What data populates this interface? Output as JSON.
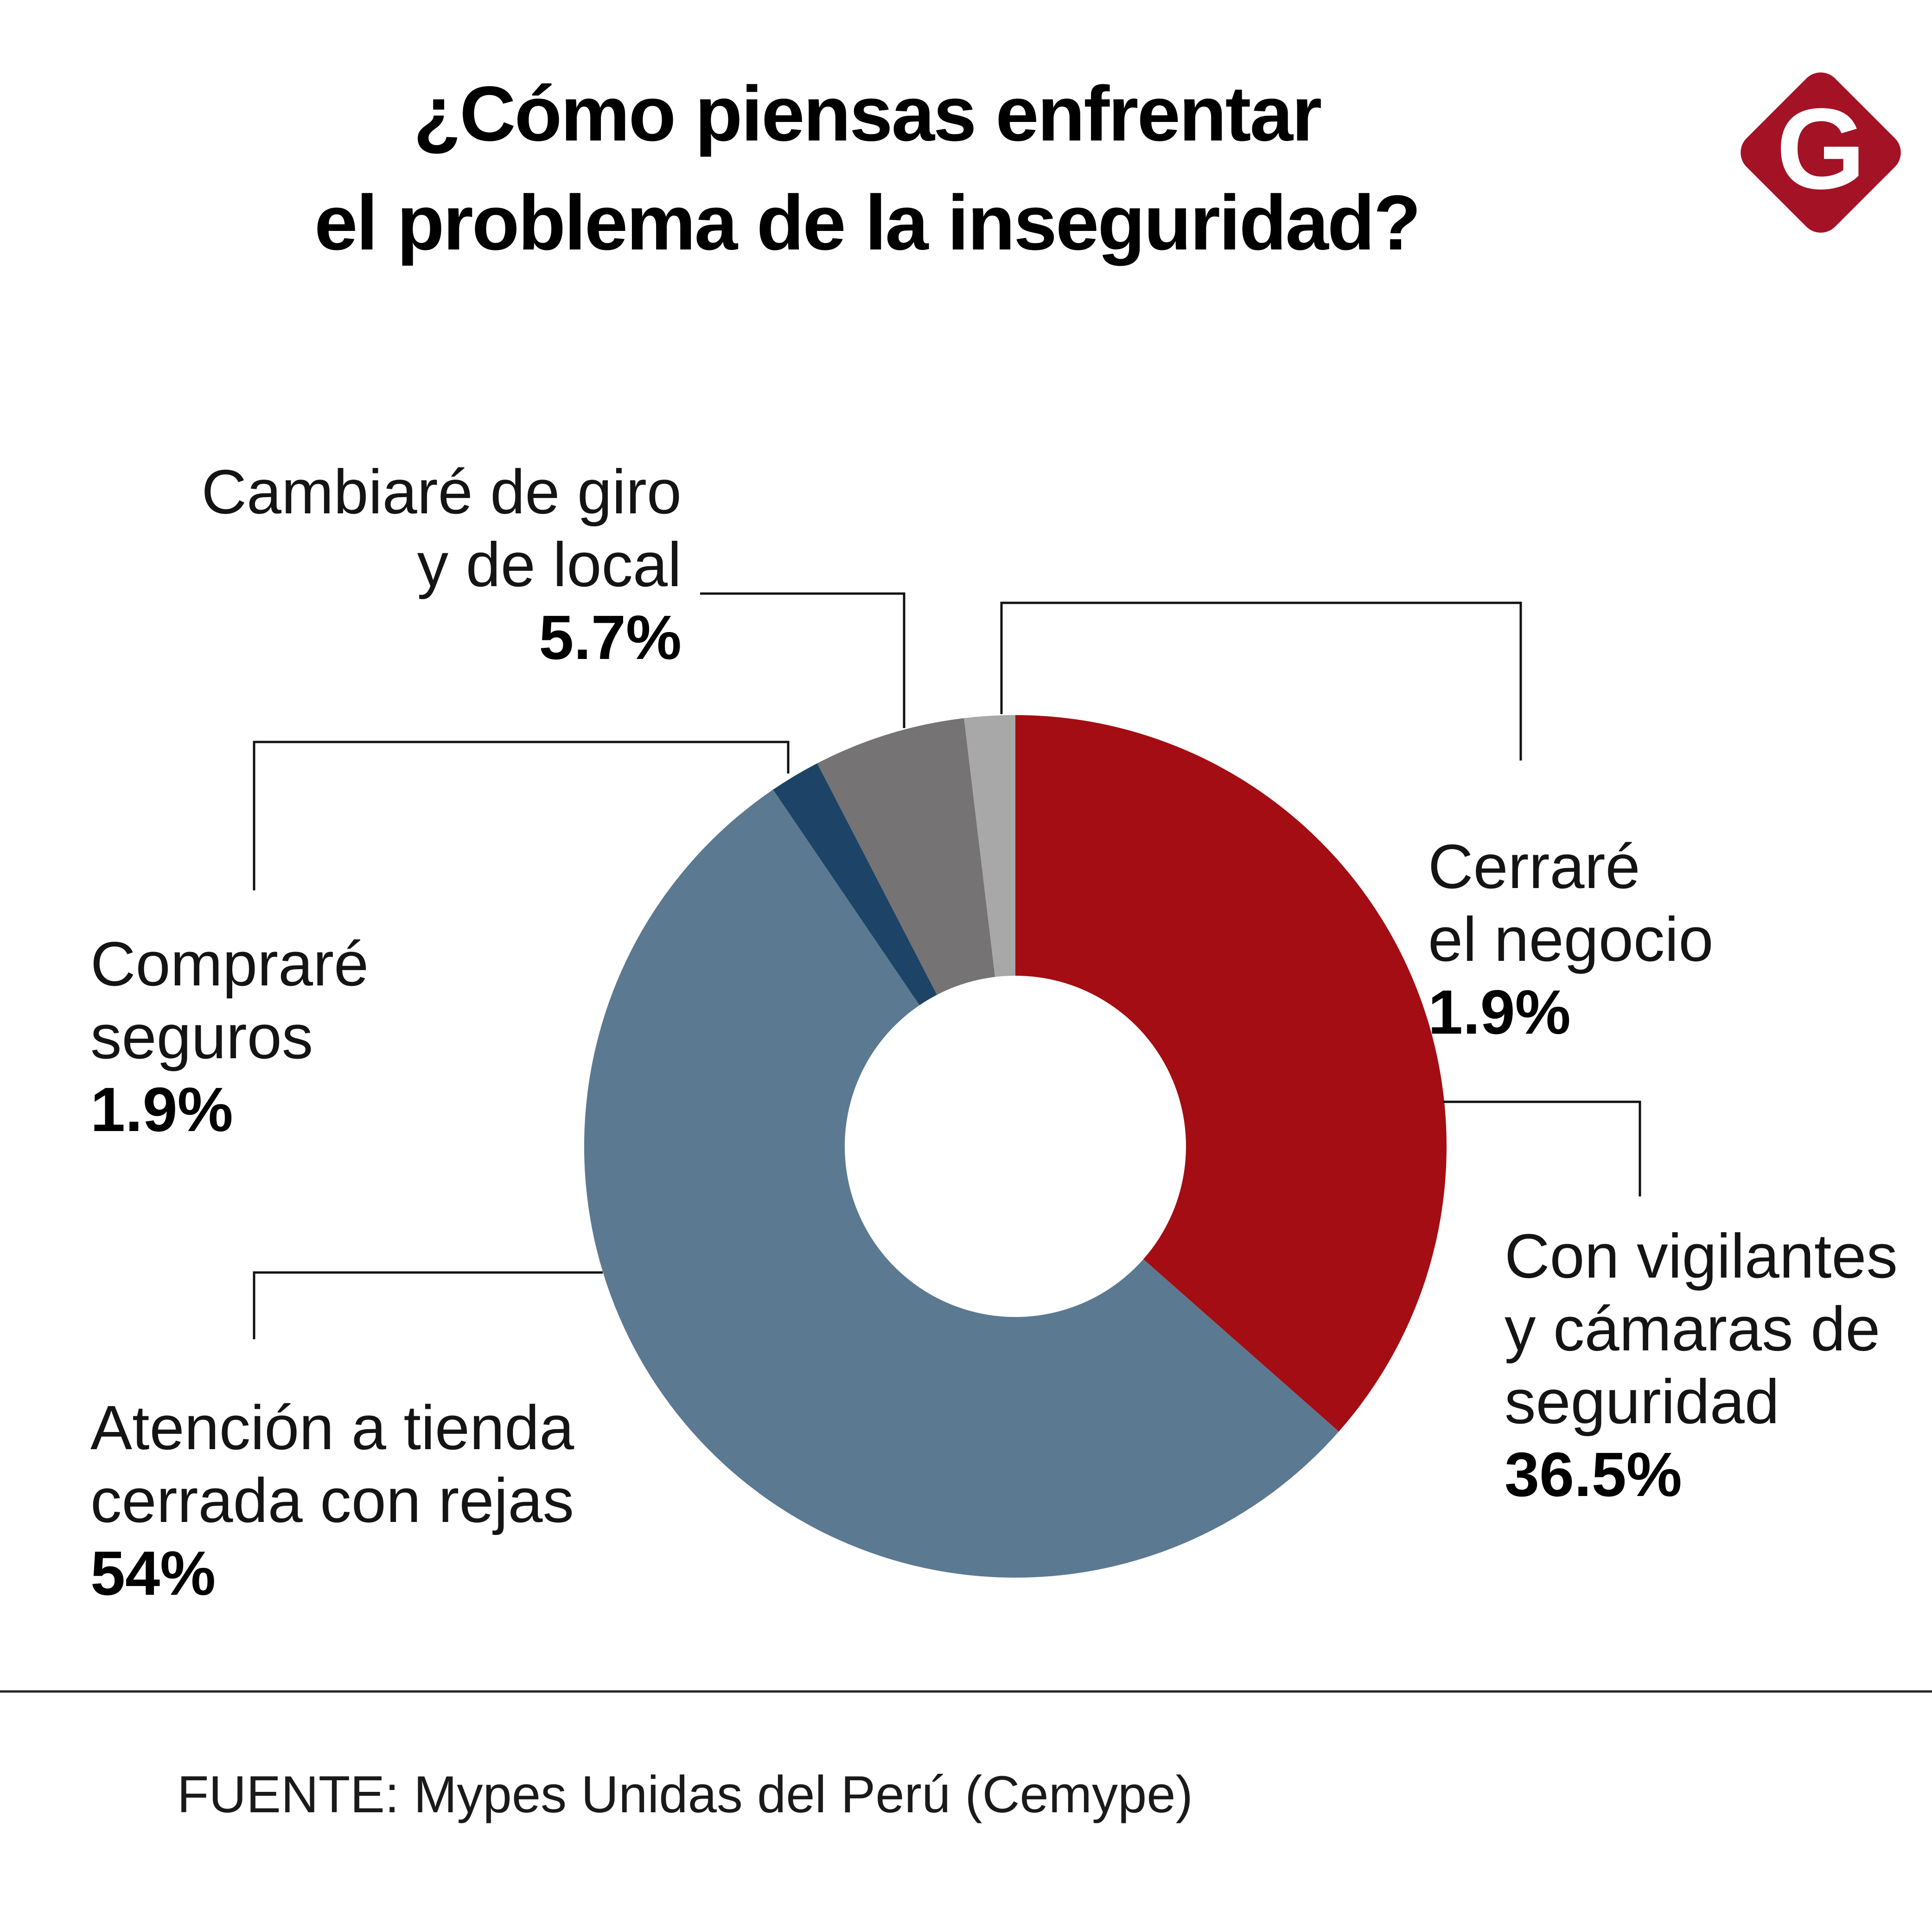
{
  "title": {
    "line1": "¿Cómo piensas enfrentar",
    "line2": "el problema de la inseguridad?"
  },
  "logo": {
    "letter": "G",
    "bg_color": "#A41225"
  },
  "callouts": {
    "cambiare": {
      "lines": [
        "Cambiaré de giro",
        "y de local"
      ],
      "pct": "5.7%"
    },
    "cerrare": {
      "lines": [
        "Cerraré",
        "el negocio"
      ],
      "pct": "1.9%"
    },
    "vigilantes": {
      "lines": [
        "Con vigilantes",
        "y cámaras de",
        "seguridad"
      ],
      "pct": "36.5%"
    },
    "comprare": {
      "lines": [
        "Compraré",
        "seguros"
      ],
      "pct": "1.9%"
    },
    "atencion": {
      "lines": [
        "Atención a tienda",
        "cerrada con rejas"
      ],
      "pct": "54%"
    }
  },
  "chart_data": {
    "type": "pie",
    "variant": "donut",
    "title": "¿Cómo piensas enfrentar el problema de la inseguridad?",
    "keys": [
      "vigilantes",
      "atencion",
      "comprare",
      "cambiare",
      "cerrare"
    ],
    "categories": [
      "Con vigilantes y cámaras de seguridad",
      "Atención a tienda cerrada con rejas",
      "Compraré seguros",
      "Cambiaré de giro y de local",
      "Cerraré el negocio"
    ],
    "values": [
      36.5,
      54,
      1.9,
      5.7,
      1.9
    ],
    "unit": "%",
    "colors": [
      "#A40D13",
      "#5C7992",
      "#1D4466",
      "#757374",
      "#A9A8A8"
    ],
    "start_angle": "12-oclock",
    "direction": "clockwise",
    "hole_ratio": 0.4,
    "legend_position": "none",
    "source": "FUENTE: Mypes Unidas del Perú (Cemype)"
  },
  "source": {
    "text": "FUENTE: Mypes Unidas del Perú (Cemype)"
  }
}
